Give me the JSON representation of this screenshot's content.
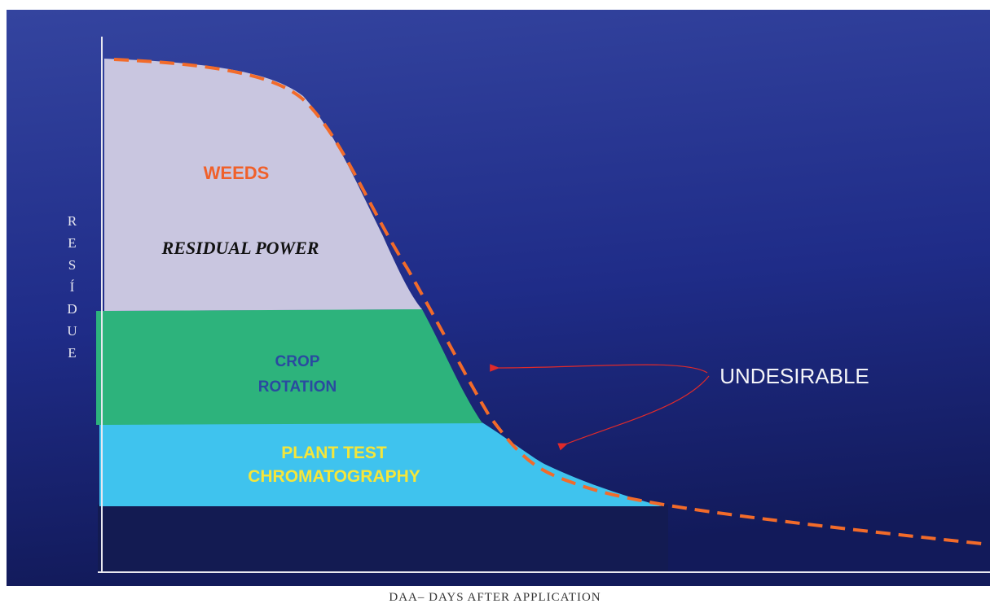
{
  "diagram": {
    "y_axis_label": "RESÍDUE",
    "x_axis_label": "DAA– DAYS AFTER APPLICATION",
    "regions": {
      "weeds": "WEEDS",
      "residual_power": "RESIDUAL POWER",
      "crop_rotation": [
        "CROP",
        "ROTATION"
      ],
      "plant_test": [
        "PLANT TEST",
        "CHROMATOGRAPHY"
      ]
    },
    "annotation": "UNDESIRABLE"
  }
}
